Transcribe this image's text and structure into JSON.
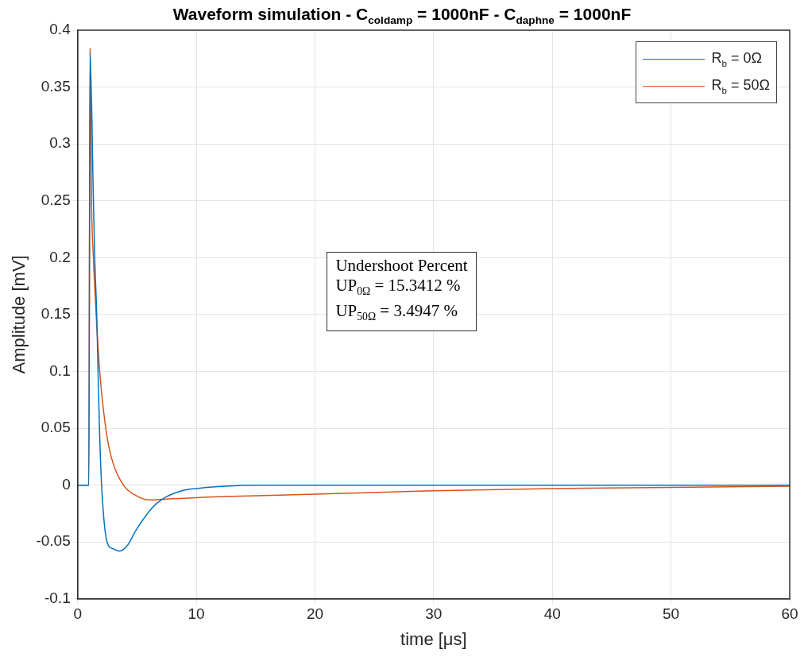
{
  "chart_data": {
    "type": "line",
    "title": "Waveform simulation - C$_{coldamp}$ = 1000nF - C$_{daphne}$ = 1000nF",
    "xlabel": "time [μs]",
    "ylabel": "Amplitude [mV]",
    "xlim": [
      0,
      60
    ],
    "xticks": [
      0,
      10,
      20,
      30,
      40,
      50,
      60
    ],
    "ylim": [
      -0.1,
      0.4
    ],
    "yticks": [
      -0.1,
      -0.05,
      0,
      0.05,
      0.1,
      0.15,
      0.2,
      0.25,
      0.3,
      0.35,
      0.4
    ],
    "grid": true,
    "legend": "top right",
    "marker": "none",
    "line_style": "solid",
    "annotations": [
      "Undershoot Percent",
      "UP$_{0Ω}$ = 15.3412 %",
      "UP$_{50Ω}$ = 3.4947 %"
    ],
    "series": [
      {
        "name": "R$_{b}$ = 0Ω",
        "color": "#0072bd",
        "x": [
          0,
          0.94,
          1.05,
          1.33,
          1.44,
          1.61,
          1.72,
          1.84,
          2.02,
          2.48,
          3.0,
          3.52,
          4.2,
          4.9,
          6.28,
          7.19,
          8.78,
          10,
          12.4,
          15,
          20,
          30,
          40,
          50,
          60
        ],
        "values": [
          0,
          0,
          0.38,
          0.25,
          0.2,
          0.15,
          0.1,
          0.05,
          0,
          -0.05,
          -0.056,
          -0.058,
          -0.053,
          -0.04,
          -0.02,
          -0.012,
          -0.005,
          -0.003,
          -0.001,
          0,
          0,
          0,
          0,
          0,
          0
        ]
      },
      {
        "name": "R$_{b}$ = 50Ω",
        "color": "#d95319",
        "x": [
          0,
          0.94,
          1.05,
          1.17,
          1.33,
          1.56,
          1.86,
          2.37,
          2.83,
          3.86,
          4.9,
          6.04,
          8,
          10,
          12.4,
          20,
          30,
          40,
          50,
          60
        ],
        "values": [
          0,
          0,
          0.384,
          0.25,
          0.2,
          0.15,
          0.1,
          0.05,
          0.025,
          0,
          -0.009,
          -0.013,
          -0.012,
          -0.011,
          -0.01,
          -0.008,
          -0.005,
          -0.003,
          -0.002,
          -0.001
        ]
      }
    ]
  }
}
